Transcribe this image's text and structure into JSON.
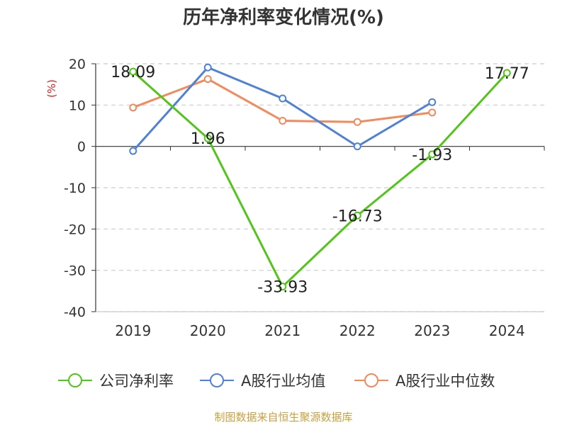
{
  "chart_data": {
    "type": "line",
    "title": "历年净利率变化情况(%)",
    "ylabel": "(%)",
    "xlabel": "",
    "categories": [
      "2019",
      "2020",
      "2021",
      "2022",
      "2023",
      "2024"
    ],
    "ylim": [
      -40,
      20
    ],
    "yticks": [
      20,
      10,
      0,
      -10,
      -20,
      -30,
      -40
    ],
    "grid": true,
    "legend_position": "bottom",
    "series": [
      {
        "name": "公司净利率",
        "color": "#52c41a",
        "values": [
          18.09,
          1.96,
          -33.93,
          -16.73,
          -1.93,
          17.77
        ],
        "labels": [
          "18.09",
          "1.96",
          "-33.93",
          "-16.73",
          "-1.93",
          "17.77"
        ]
      },
      {
        "name": "A股行业均值",
        "color": "#4f81d6",
        "values": [
          -1.1,
          19.1,
          11.6,
          0.0,
          10.7,
          null
        ]
      },
      {
        "name": "A股行业中位数",
        "color": "#f28a5c",
        "values": [
          9.4,
          16.3,
          6.2,
          5.9,
          8.2,
          null
        ]
      }
    ]
  },
  "source": "制图数据来自恒生聚源数据库"
}
